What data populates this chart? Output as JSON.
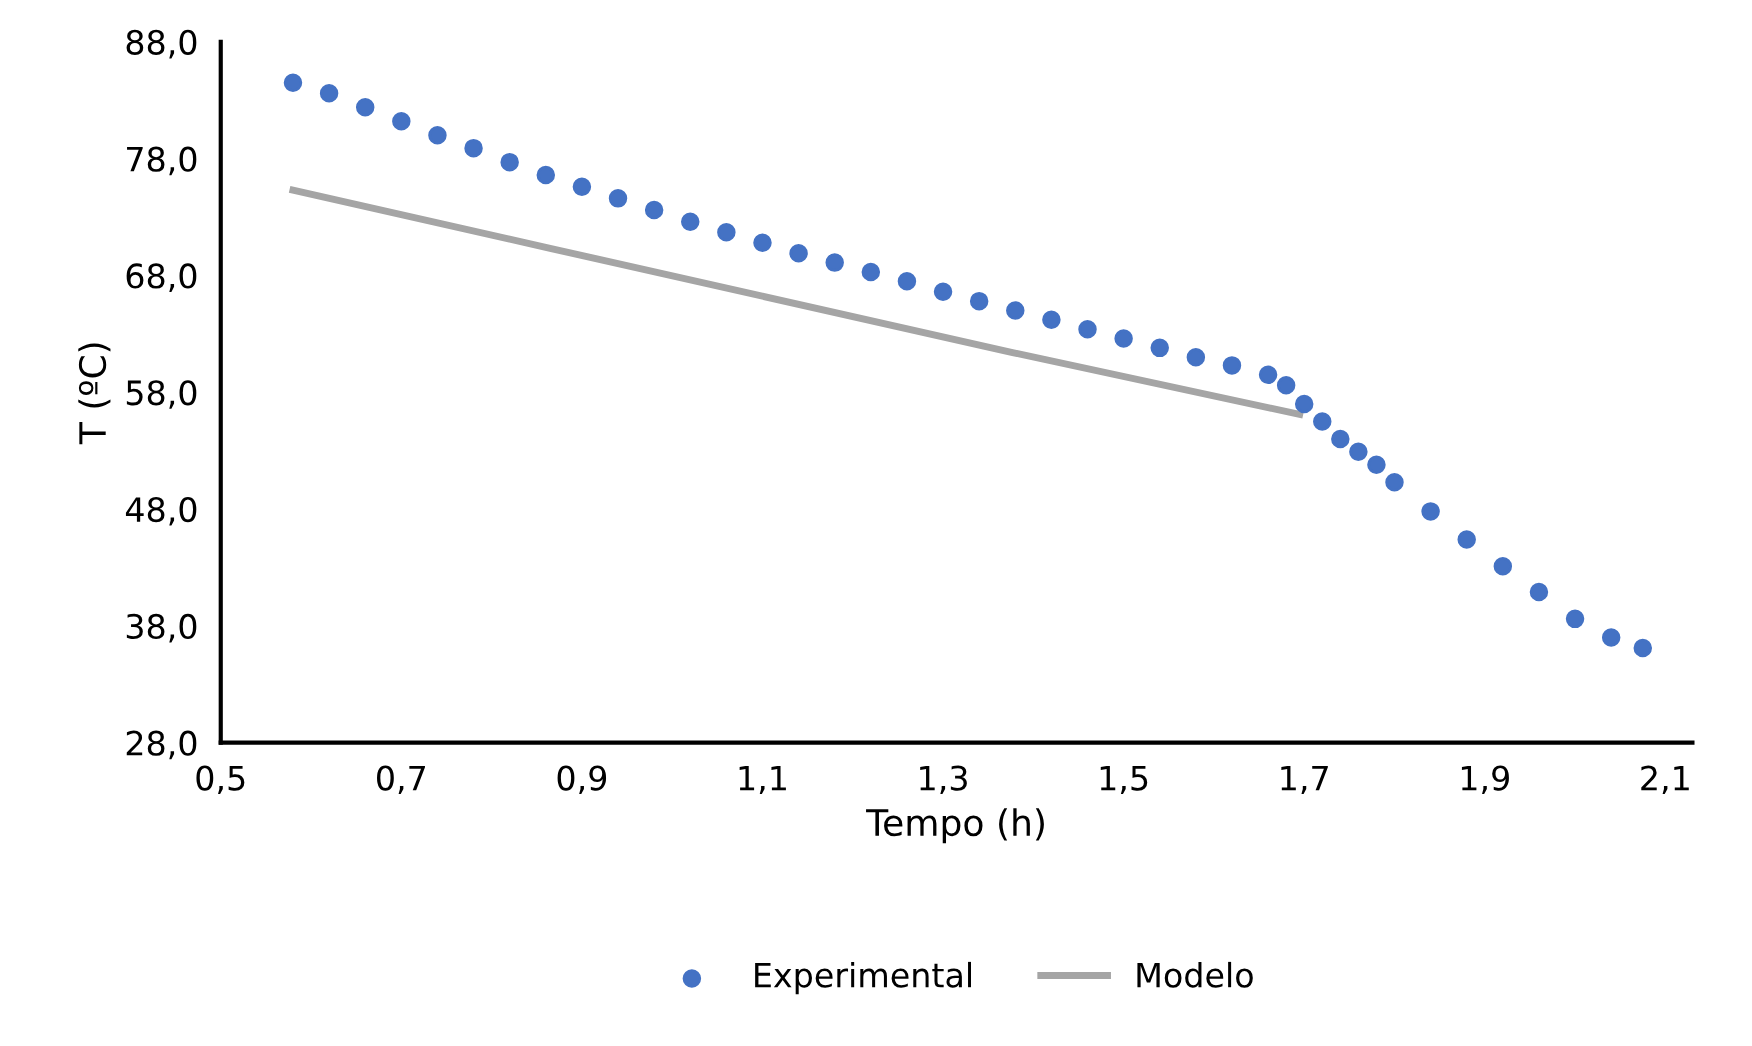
{
  "chart_data": {
    "type": "scatter",
    "xlabel": "Tempo (h)",
    "ylabel": "T (ºC)",
    "xlim": [
      0.5,
      2.13
    ],
    "ylim": [
      28,
      88
    ],
    "xticks": [
      {
        "value": 0.5,
        "label": "0,5"
      },
      {
        "value": 0.7,
        "label": "0,7"
      },
      {
        "value": 0.9,
        "label": "0,9"
      },
      {
        "value": 1.1,
        "label": "1,1"
      },
      {
        "value": 1.3,
        "label": "1,3"
      },
      {
        "value": 1.5,
        "label": "1,5"
      },
      {
        "value": 1.7,
        "label": "1,7"
      },
      {
        "value": 1.9,
        "label": "1,9"
      },
      {
        "value": 2.1,
        "label": "2,1"
      }
    ],
    "yticks": [
      {
        "value": 28,
        "label": "28,0"
      },
      {
        "value": 38,
        "label": "38,0"
      },
      {
        "value": 48,
        "label": "48,0"
      },
      {
        "value": 58,
        "label": "58,0"
      },
      {
        "value": 68,
        "label": "68,0"
      },
      {
        "value": 78,
        "label": "78,0"
      },
      {
        "value": 88,
        "label": "88,0"
      }
    ],
    "grid": false,
    "legend": "bottom",
    "series": [
      {
        "name": "Experimental",
        "marker": "circle",
        "color": "#4472c4",
        "x": [
          0.58,
          0.62,
          0.66,
          0.7,
          0.74,
          0.78,
          0.82,
          0.86,
          0.9,
          0.94,
          0.98,
          1.02,
          1.06,
          1.1,
          1.14,
          1.18,
          1.22,
          1.26,
          1.3,
          1.34,
          1.38,
          1.42,
          1.46,
          1.5,
          1.54,
          1.58,
          1.62,
          1.66,
          1.68,
          1.7,
          1.72,
          1.74,
          1.76,
          1.78,
          1.8,
          1.84,
          1.88,
          1.92,
          1.96,
          2.0,
          2.04,
          2.075
        ],
        "values": [
          84.5,
          83.6,
          82.4,
          81.2,
          80.0,
          78.9,
          77.7,
          76.6,
          75.6,
          74.6,
          73.6,
          72.6,
          71.7,
          70.8,
          69.9,
          69.1,
          68.3,
          67.5,
          66.6,
          65.8,
          65.0,
          64.2,
          63.4,
          62.6,
          61.8,
          61.0,
          60.3,
          59.5,
          58.6,
          57.0,
          55.5,
          54.0,
          52.9,
          51.8,
          50.3,
          47.8,
          45.4,
          43.1,
          40.9,
          38.6,
          37.0,
          36.1
        ]
      },
      {
        "name": "Modelo",
        "type": "line",
        "marker": "none",
        "color": "#a5a5a5",
        "x": [
          0.58,
          0.866,
          1.377,
          1.695
        ],
        "values": [
          75.3,
          70.3,
          61.4,
          56.1
        ]
      }
    ]
  }
}
